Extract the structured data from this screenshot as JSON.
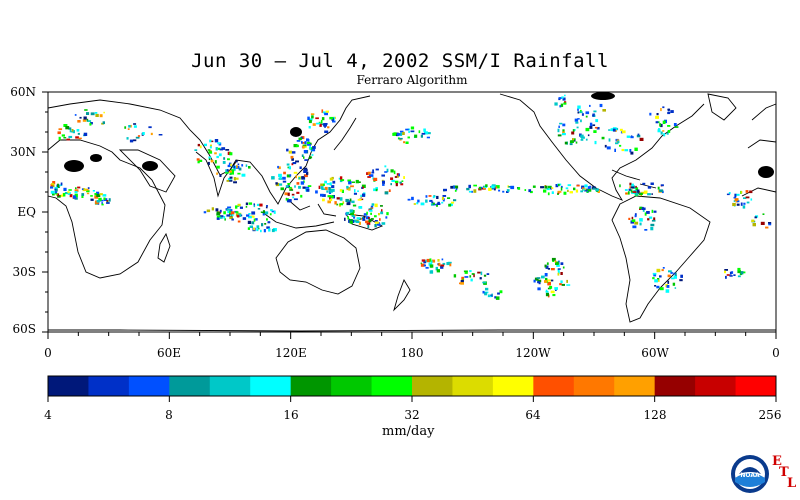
{
  "title": "Jun 30 – Jul 4, 2002 SSM/I Rainfall",
  "subtitle": "Ferraro Algorithm",
  "lat_labels": [
    "60N",
    "30N",
    "EQ",
    "30S",
    "60S"
  ],
  "lon_labels": [
    "0",
    "60E",
    "120E",
    "180",
    "120W",
    "60W",
    "0"
  ],
  "colorbar": {
    "colors": [
      "#00187a",
      "#0030c8",
      "#0050ff",
      "#009a9a",
      "#00c8c8",
      "#00ffff",
      "#009600",
      "#00c800",
      "#00ff00",
      "#b4b400",
      "#dcdc00",
      "#ffff00",
      "#ff5000",
      "#ff7800",
      "#ffa000",
      "#960000",
      "#c80000",
      "#ff0000"
    ],
    "tick_labels": [
      "4",
      "8",
      "16",
      "32",
      "64",
      "128",
      "256"
    ],
    "units": "mm/day"
  },
  "logo": {
    "name": "NOAA",
    "etl": [
      "E",
      "T",
      "L"
    ],
    "etl_color": "#d00000"
  },
  "icons": [
    "noaa-logo-icon"
  ]
}
